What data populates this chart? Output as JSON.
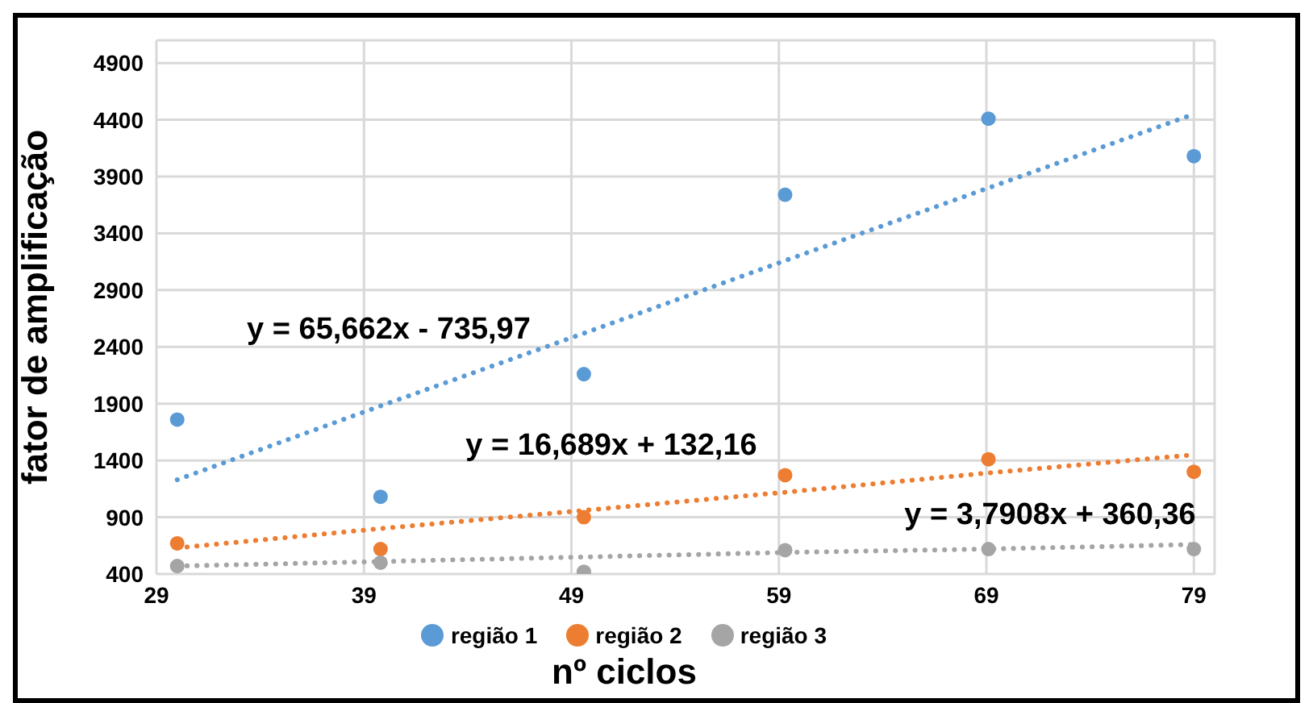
{
  "chart_data": {
    "type": "scatter",
    "xlabel": "nº ciclos",
    "ylabel": "fator de amplificação",
    "x": [
      30,
      39.8,
      49.6,
      59.3,
      69.1,
      79
    ],
    "series": [
      {
        "name": "região 1",
        "color": "#5b9bd5",
        "values": [
          1760,
          1080,
          2160,
          3740,
          4410,
          4080
        ]
      },
      {
        "name": "região 2",
        "color": "#ed7d31",
        "values": [
          670,
          620,
          900,
          1270,
          1410,
          1300
        ]
      },
      {
        "name": "região 3",
        "color": "#a5a5a5",
        "values": [
          470,
          500,
          420,
          610,
          620,
          620
        ]
      },
      {
        "type": "line",
        "color": "#5b9bd5",
        "values": [
          1230,
          1880,
          2520,
          3160,
          3800,
          4450
        ],
        "line_style": "dotted",
        "marker": "none"
      },
      {
        "type": "line",
        "color": "#ed7d31",
        "values": [
          630,
          800,
          960,
          1120,
          1290,
          1450
        ],
        "line_style": "dotted",
        "marker": "none"
      },
      {
        "type": "line",
        "color": "#a5a5a5",
        "values": [
          470,
          510,
          550,
          590,
          620,
          660
        ],
        "line_style": "dotted",
        "marker": "none"
      }
    ],
    "xlim": [
      29,
      80
    ],
    "xticks": [
      29,
      39,
      49,
      59,
      69,
      79
    ],
    "ylim": [
      400,
      5100
    ],
    "yticks": [
      400,
      900,
      1400,
      1900,
      2400,
      2900,
      3400,
      3900,
      4400,
      4900
    ],
    "grid": true,
    "legend": "bottom",
    "marker": "circle",
    "annotations": [
      "y = 65,662x - 735,97",
      "y = 16,689x + 132,16",
      "y = 3,7908x + 360,36"
    ]
  }
}
